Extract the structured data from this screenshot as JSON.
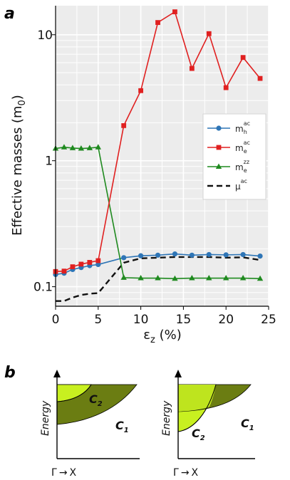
{
  "panel_a": {
    "letter": "a"
  },
  "panel_b": {
    "letter": "b"
  },
  "chart_data": {
    "type": "line",
    "xlabel": "εz (%)",
    "xlabel_main": "ε",
    "xlabel_sub": "z",
    "xlabel_unit": " (%)",
    "ylabel": "Effective masses (m0)",
    "ylabel_main": "Effective masses (m",
    "ylabel_sub": "0",
    "ylabel_tail": ")",
    "yscale": "log",
    "xlim": [
      0,
      25
    ],
    "ylim": [
      0.07,
      17
    ],
    "xticks": [
      0,
      5,
      10,
      15,
      20,
      25
    ],
    "xtick_labels": [
      "0",
      "5",
      "10",
      "15",
      "20",
      "25"
    ],
    "yticks": [
      0.1,
      1,
      10
    ],
    "ytick_labels": [
      "0.1",
      "1",
      "10"
    ],
    "grid": true,
    "legend_position": "right",
    "series": [
      {
        "name": "m_h^ac",
        "base": "m",
        "sub": "h",
        "sup": "ac",
        "color": "#2e75b6",
        "marker": "circle",
        "dash": "",
        "x": [
          0,
          1,
          2,
          3,
          4,
          5,
          8,
          10,
          12,
          14,
          16,
          18,
          20,
          22,
          24
        ],
        "y": [
          0.125,
          0.128,
          0.137,
          0.142,
          0.147,
          0.15,
          0.17,
          0.176,
          0.178,
          0.182,
          0.178,
          0.18,
          0.179,
          0.18,
          0.175
        ]
      },
      {
        "name": "m_e^ac",
        "base": "m",
        "sub": "e",
        "sup": "ac",
        "color": "#e02020",
        "marker": "square",
        "dash": "",
        "x": [
          0,
          1,
          2,
          3,
          4,
          5,
          8,
          10,
          12,
          14,
          16,
          18,
          20,
          22,
          24
        ],
        "y": [
          0.132,
          0.133,
          0.144,
          0.151,
          0.156,
          0.161,
          1.9,
          3.6,
          12.5,
          15.2,
          5.4,
          10.2,
          3.8,
          6.6,
          4.5
        ]
      },
      {
        "name": "m_e^zz",
        "base": "m",
        "sub": "e",
        "sup": "zz",
        "color": "#1f8a1f",
        "marker": "triangle",
        "dash": "",
        "x": [
          0,
          1,
          2,
          3,
          4,
          5,
          8,
          10,
          12,
          14,
          16,
          18,
          20,
          22,
          24
        ],
        "y": [
          1.25,
          1.28,
          1.26,
          1.25,
          1.26,
          1.28,
          0.118,
          0.117,
          0.117,
          0.116,
          0.117,
          0.117,
          0.117,
          0.117,
          0.116
        ]
      },
      {
        "name": "μ^ac",
        "base": "μ",
        "sub": "",
        "sup": "ac",
        "color": "#111111",
        "marker": "none",
        "dash": "8,5",
        "x": [
          0,
          1,
          2,
          3,
          4,
          5,
          8,
          10,
          12,
          14,
          16,
          18,
          20,
          22,
          24
        ],
        "y": [
          0.077,
          0.077,
          0.082,
          0.086,
          0.088,
          0.089,
          0.155,
          0.168,
          0.17,
          0.172,
          0.172,
          0.172,
          0.17,
          0.171,
          0.163
        ]
      }
    ]
  },
  "diagrams": [
    {
      "ylabel": "Energy",
      "xlabel_from": "Γ",
      "xlabel_arrow": "→",
      "xlabel_to": "X",
      "curve_labels": [
        {
          "base": "C",
          "sub": "2"
        },
        {
          "base": "C",
          "sub": "1"
        }
      ],
      "colors": {
        "light": "#c8f020",
        "dark": "#6b7d12"
      }
    },
    {
      "ylabel": "Energy",
      "xlabel_from": "Γ",
      "xlabel_arrow": "→",
      "xlabel_to": "X",
      "curve_labels": [
        {
          "base": "C",
          "sub": "1"
        },
        {
          "base": "C",
          "sub": "2"
        }
      ],
      "colors": {
        "light": "#c8f020",
        "dark": "#6b7d12"
      }
    }
  ]
}
